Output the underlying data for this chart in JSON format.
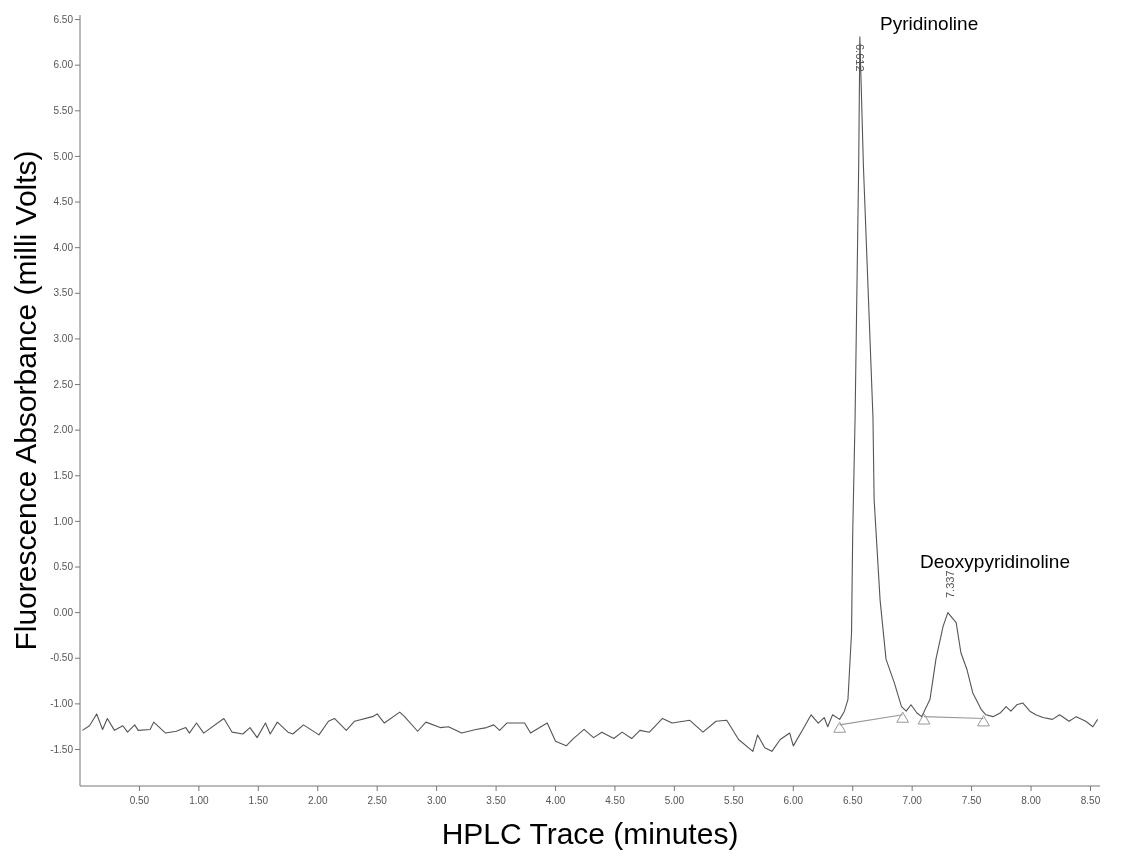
{
  "chart_data": {
    "type": "line",
    "xlabel": "HPLC Trace (minutes)",
    "ylabel": "Fluorescence Absorbance (milli Volts)",
    "xlim": [
      0,
      8.58
    ],
    "ylim": [
      -1.9,
      6.55
    ],
    "xticks": [
      {
        "value": 0.5,
        "label": "0.50"
      },
      {
        "value": 1,
        "label": "1.00"
      },
      {
        "value": 1.5,
        "label": "1.50"
      },
      {
        "value": 2,
        "label": "2.00"
      },
      {
        "value": 2.5,
        "label": "2.50"
      },
      {
        "value": 3,
        "label": "3.00"
      },
      {
        "value": 3.5,
        "label": "3.50"
      },
      {
        "value": 4,
        "label": "4.00"
      },
      {
        "value": 4.5,
        "label": "4.50"
      },
      {
        "value": 5,
        "label": "5.00"
      },
      {
        "value": 5.5,
        "label": "5.50"
      },
      {
        "value": 6,
        "label": "6.00"
      },
      {
        "value": 6.5,
        "label": "6.50"
      },
      {
        "value": 7,
        "label": "7.00"
      },
      {
        "value": 7.5,
        "label": "7.50"
      },
      {
        "value": 8,
        "label": "8.00"
      },
      {
        "value": 8.5,
        "label": "8.50"
      }
    ],
    "yticks": [
      {
        "value": -1.5,
        "label": "-1.50"
      },
      {
        "value": -1,
        "label": "-1.00"
      },
      {
        "value": -0.5,
        "label": "-0.50"
      },
      {
        "value": 0,
        "label": "0.00"
      },
      {
        "value": 0.5,
        "label": "0.50"
      },
      {
        "value": 1,
        "label": "1.00"
      },
      {
        "value": 1.5,
        "label": "1.50"
      },
      {
        "value": 2,
        "label": "2.00"
      },
      {
        "value": 2.5,
        "label": "2.50"
      },
      {
        "value": 3,
        "label": "3.00"
      },
      {
        "value": 3.5,
        "label": "3.50"
      },
      {
        "value": 4,
        "label": "4.00"
      },
      {
        "value": 4.5,
        "label": "4.50"
      },
      {
        "value": 5,
        "label": "5.00"
      },
      {
        "value": 5.5,
        "label": "5.50"
      },
      {
        "value": 6,
        "label": "6.00"
      },
      {
        "value": 6.5,
        "label": "6.50"
      }
    ],
    "grid": false,
    "series": [
      {
        "color": "#555555",
        "x": [
          0.02,
          0.08,
          0.14,
          0.19,
          0.23,
          0.29,
          0.36,
          0.4,
          0.46,
          0.49,
          0.59,
          0.62,
          0.72,
          0.81,
          0.89,
          0.92,
          0.98,
          1.04,
          1.21,
          1.28,
          1.37,
          1.43,
          1.49,
          1.56,
          1.6,
          1.66,
          1.75,
          1.79,
          1.88,
          2.01,
          2.09,
          2.14,
          2.24,
          2.31,
          2.46,
          2.5,
          2.56,
          2.69,
          2.73,
          2.84,
          2.91,
          3.03,
          3.1,
          3.21,
          3.33,
          3.42,
          3.48,
          3.53,
          3.59,
          3.74,
          3.79,
          3.93,
          4.0,
          4.09,
          4.15,
          4.24,
          4.32,
          4.39,
          4.49,
          4.56,
          4.64,
          4.71,
          4.79,
          4.9,
          4.98,
          5.13,
          5.24,
          5.35,
          5.44,
          5.54,
          5.66,
          5.7,
          5.76,
          5.82,
          5.89,
          5.97,
          6.0,
          6.08,
          6.15,
          6.21,
          6.26,
          6.29,
          6.33,
          6.39,
          6.43,
          6.46,
          6.49,
          6.5,
          6.52,
          6.55,
          6.56,
          6.59,
          6.67,
          6.68,
          6.73,
          6.78,
          6.85,
          6.91,
          6.95,
          6.99,
          7.04,
          7.08,
          7.15,
          7.2,
          7.26,
          7.3,
          7.37,
          7.41,
          7.46,
          7.51,
          7.58,
          7.62,
          7.68,
          7.74,
          7.79,
          7.83,
          7.88,
          7.93,
          7.99,
          8.04,
          8.1,
          8.18,
          8.24,
          8.32,
          8.38,
          8.46,
          8.52,
          8.56
        ],
        "values": [
          -1.29,
          -1.24,
          -1.11,
          -1.28,
          -1.16,
          -1.29,
          -1.24,
          -1.31,
          -1.23,
          -1.29,
          -1.28,
          -1.2,
          -1.32,
          -1.3,
          -1.26,
          -1.32,
          -1.21,
          -1.32,
          -1.16,
          -1.31,
          -1.33,
          -1.26,
          -1.37,
          -1.21,
          -1.33,
          -1.2,
          -1.31,
          -1.33,
          -1.23,
          -1.34,
          -1.19,
          -1.16,
          -1.29,
          -1.19,
          -1.14,
          -1.11,
          -1.21,
          -1.09,
          -1.14,
          -1.3,
          -1.2,
          -1.26,
          -1.25,
          -1.32,
          -1.28,
          -1.26,
          -1.23,
          -1.29,
          -1.21,
          -1.21,
          -1.32,
          -1.21,
          -1.41,
          -1.46,
          -1.38,
          -1.28,
          -1.37,
          -1.31,
          -1.38,
          -1.31,
          -1.38,
          -1.29,
          -1.31,
          -1.16,
          -1.21,
          -1.18,
          -1.31,
          -1.19,
          -1.18,
          -1.39,
          -1.52,
          -1.34,
          -1.48,
          -1.52,
          -1.39,
          -1.32,
          -1.46,
          -1.28,
          -1.12,
          -1.21,
          -1.15,
          -1.25,
          -1.12,
          -1.17,
          -1.08,
          -0.95,
          -0.22,
          0.88,
          2.15,
          4.89,
          6.31,
          4.89,
          2.15,
          1.24,
          0.14,
          -0.51,
          -0.77,
          -1.03,
          -1.08,
          -1.01,
          -1.1,
          -1.14,
          -0.95,
          -0.51,
          -0.15,
          0.0,
          -0.11,
          -0.44,
          -0.62,
          -0.88,
          -1.06,
          -1.12,
          -1.14,
          -1.1,
          -1.03,
          -1.08,
          -1.01,
          -0.99,
          -1.08,
          -1.12,
          -1.15,
          -1.17,
          -1.12,
          -1.19,
          -1.14,
          -1.19,
          -1.25,
          -1.17
        ]
      },
      {
        "color": "#999999",
        "marker": "triangle",
        "x": [
          6.39,
          6.92,
          7.0,
          7.1,
          7.6
        ],
        "values": [
          -1.23,
          -1.12,
          null,
          -1.14,
          -1.16
        ]
      }
    ],
    "annotations": [
      "Pyridinoline",
      "6.612",
      "Deoxypyridinoline",
      "7.337"
    ]
  }
}
